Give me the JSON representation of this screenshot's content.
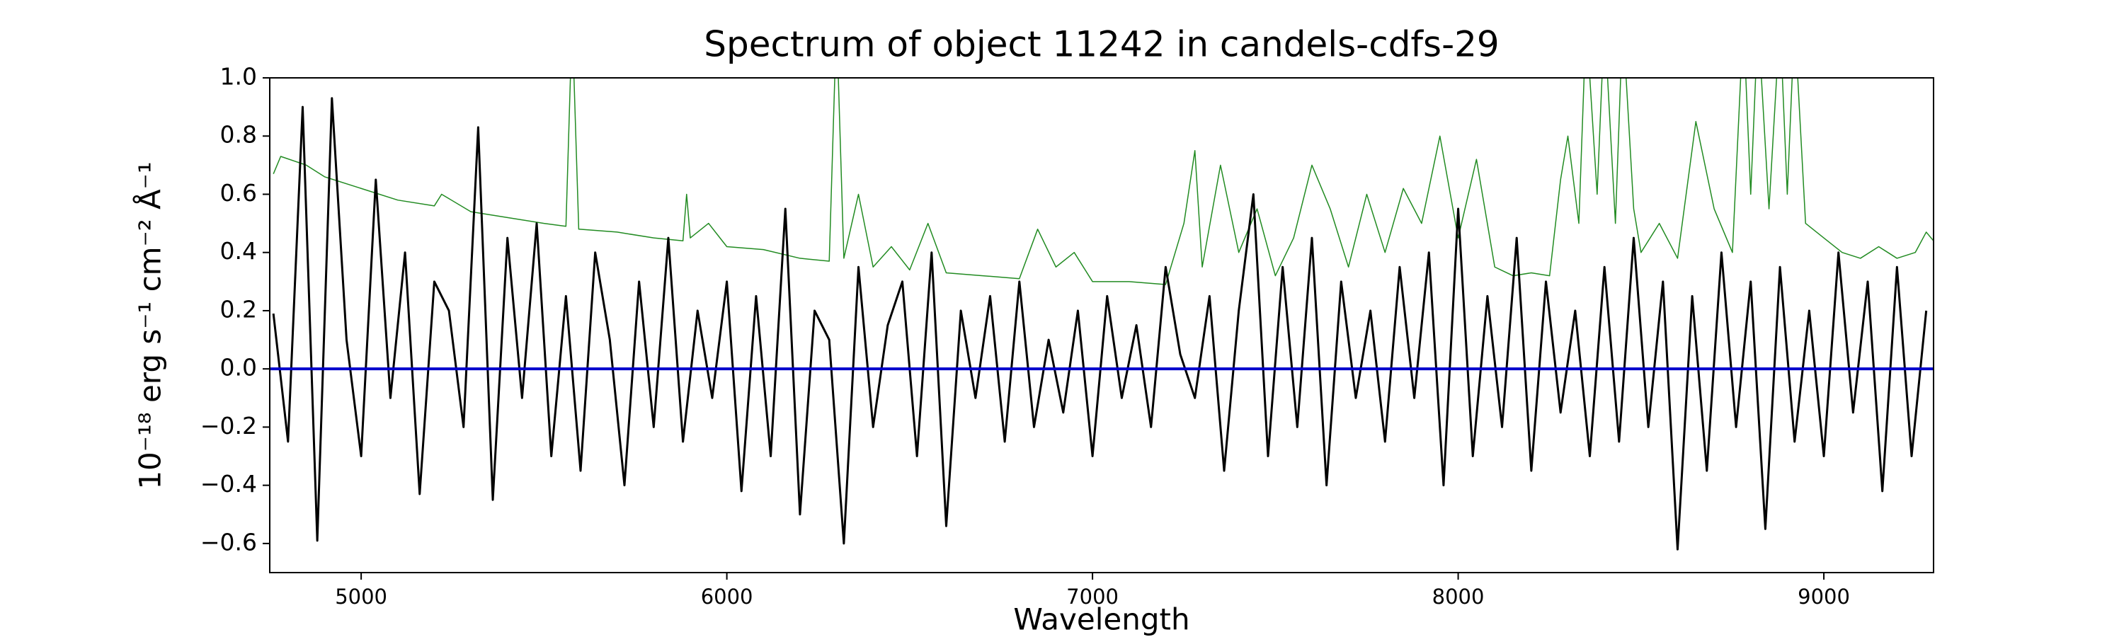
{
  "chart_data": {
    "type": "line",
    "title": "Spectrum of object 11242 in candels-cdfs-29",
    "xlabel": "Wavelength",
    "ylabel": "10⁻¹⁸ erg s⁻¹ cm⁻² Å⁻¹",
    "xlim": [
      4750,
      9300
    ],
    "ylim": [
      -0.7,
      1.0
    ],
    "xticks": [
      5000,
      6000,
      7000,
      8000,
      9000
    ],
    "yticks": [
      {
        "value": -0.6,
        "label": "−0.6"
      },
      {
        "value": -0.4,
        "label": "−0.4"
      },
      {
        "value": -0.2,
        "label": "−0.2"
      },
      {
        "value": 0,
        "label": "0.0"
      },
      0.2,
      0.4,
      0.6,
      0.8,
      {
        "value": 1,
        "label": "1.0"
      }
    ],
    "series": [
      {
        "color": "#228b22",
        "width": 1.5,
        "x": [
          4760,
          4780,
          4850,
          4900,
          5000,
          5100,
          5200,
          5220,
          5300,
          5400,
          5500,
          5560,
          5577,
          5595,
          5700,
          5800,
          5880,
          5890,
          5900,
          5950,
          6000,
          6100,
          6200,
          6280,
          6300,
          6320,
          6360,
          6400,
          6450,
          6500,
          6550,
          6600,
          6700,
          6800,
          6850,
          6900,
          6950,
          7000,
          7100,
          7200,
          7250,
          7280,
          7300,
          7350,
          7400,
          7450,
          7500,
          7550,
          7600,
          7650,
          7700,
          7750,
          7800,
          7850,
          7900,
          7950,
          8000,
          8050,
          8100,
          8150,
          8200,
          8250,
          8280,
          8300,
          8330,
          8350,
          8380,
          8400,
          8430,
          8450,
          8480,
          8500,
          8550,
          8600,
          8650,
          8700,
          8750,
          8780,
          8800,
          8820,
          8850,
          8880,
          8900,
          8920,
          8950,
          9000,
          9050,
          9100,
          9150,
          9200,
          9250,
          9280,
          9300
        ],
        "values": [
          0.67,
          0.73,
          0.7,
          0.66,
          0.62,
          0.58,
          0.56,
          0.6,
          0.54,
          0.52,
          0.5,
          0.49,
          1.2,
          0.48,
          0.47,
          0.45,
          0.44,
          0.6,
          0.45,
          0.5,
          0.42,
          0.41,
          0.38,
          0.37,
          1.2,
          0.38,
          0.6,
          0.35,
          0.42,
          0.34,
          0.5,
          0.33,
          0.32,
          0.31,
          0.48,
          0.35,
          0.4,
          0.3,
          0.3,
          0.29,
          0.5,
          0.75,
          0.35,
          0.7,
          0.4,
          0.55,
          0.32,
          0.45,
          0.7,
          0.55,
          0.35,
          0.6,
          0.4,
          0.62,
          0.5,
          0.8,
          0.45,
          0.72,
          0.35,
          0.32,
          0.33,
          0.32,
          0.65,
          0.8,
          0.5,
          1.2,
          0.6,
          1.2,
          0.5,
          1.2,
          0.55,
          0.4,
          0.5,
          0.38,
          0.85,
          0.55,
          0.4,
          1.2,
          0.6,
          1.2,
          0.55,
          1.2,
          0.6,
          1.2,
          0.5,
          0.45,
          0.4,
          0.38,
          0.42,
          0.38,
          0.4,
          0.47,
          0.44
        ]
      },
      {
        "color": "#000000",
        "width": 3,
        "x": [
          4760,
          4800,
          4840,
          4880,
          4920,
          4960,
          5000,
          5040,
          5080,
          5120,
          5160,
          5200,
          5240,
          5280,
          5320,
          5360,
          5400,
          5440,
          5480,
          5520,
          5560,
          5600,
          5640,
          5680,
          5720,
          5760,
          5800,
          5840,
          5880,
          5920,
          5960,
          6000,
          6040,
          6080,
          6120,
          6160,
          6200,
          6240,
          6280,
          6320,
          6360,
          6400,
          6440,
          6480,
          6520,
          6560,
          6600,
          6640,
          6680,
          6720,
          6760,
          6800,
          6840,
          6880,
          6920,
          6960,
          7000,
          7040,
          7080,
          7120,
          7160,
          7200,
          7240,
          7280,
          7320,
          7360,
          7400,
          7440,
          7480,
          7520,
          7560,
          7600,
          7640,
          7680,
          7720,
          7760,
          7800,
          7840,
          7880,
          7920,
          7960,
          8000,
          8040,
          8080,
          8120,
          8160,
          8200,
          8240,
          8280,
          8320,
          8360,
          8400,
          8440,
          8480,
          8520,
          8560,
          8600,
          8640,
          8680,
          8720,
          8760,
          8800,
          8840,
          8880,
          8920,
          8960,
          9000,
          9040,
          9080,
          9120,
          9160,
          9200,
          9240,
          9280
        ],
        "values": [
          0.19,
          -0.25,
          0.9,
          -0.59,
          0.93,
          0.1,
          -0.3,
          0.65,
          -0.1,
          0.4,
          -0.43,
          0.3,
          0.2,
          -0.2,
          0.83,
          -0.45,
          0.45,
          -0.1,
          0.5,
          -0.3,
          0.25,
          -0.35,
          0.4,
          0.1,
          -0.4,
          0.3,
          -0.2,
          0.45,
          -0.25,
          0.2,
          -0.1,
          0.3,
          -0.42,
          0.25,
          -0.3,
          0.55,
          -0.5,
          0.2,
          0.1,
          -0.6,
          0.35,
          -0.2,
          0.15,
          0.3,
          -0.3,
          0.4,
          -0.54,
          0.2,
          -0.1,
          0.25,
          -0.25,
          0.3,
          -0.2,
          0.1,
          -0.15,
          0.2,
          -0.3,
          0.25,
          -0.1,
          0.15,
          -0.2,
          0.35,
          0.05,
          -0.1,
          0.25,
          -0.35,
          0.2,
          0.6,
          -0.3,
          0.35,
          -0.2,
          0.45,
          -0.4,
          0.3,
          -0.1,
          0.2,
          -0.25,
          0.35,
          -0.1,
          0.4,
          -0.4,
          0.55,
          -0.3,
          0.25,
          -0.2,
          0.45,
          -0.35,
          0.3,
          -0.15,
          0.2,
          -0.3,
          0.35,
          -0.25,
          0.45,
          -0.2,
          0.3,
          -0.62,
          0.25,
          -0.35,
          0.4,
          -0.2,
          0.3,
          -0.55,
          0.35,
          -0.25,
          0.2,
          -0.3,
          0.4,
          -0.15,
          0.3,
          -0.42,
          0.35,
          -0.3,
          0.2
        ]
      },
      {
        "color": "#0000cc",
        "width": 4,
        "x": [
          4750,
          9300
        ],
        "values": [
          0,
          0
        ]
      }
    ]
  }
}
